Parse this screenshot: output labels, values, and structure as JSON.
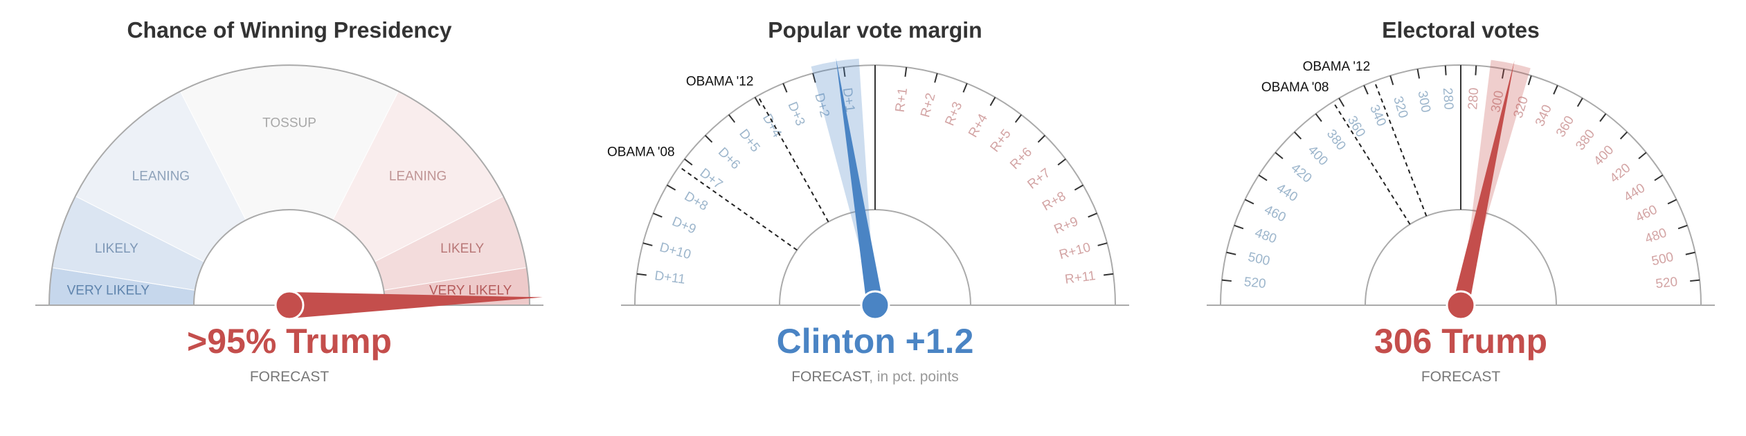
{
  "chart_data": [
    {
      "type": "gauge-zones",
      "title": "Chance of Winning Presidency",
      "xlim": [
        0,
        100
      ],
      "value": 99,
      "color": "#c44e4c",
      "headline": ">95% Trump",
      "caption": "FORECAST",
      "zones": [
        {
          "label": "VERY LIKELY",
          "from": 0,
          "to": 5,
          "color": "#c6d7ec",
          "text_color": "#5f84ad"
        },
        {
          "label": "LIKELY",
          "from": 5,
          "to": 15,
          "color": "#dbe5f2",
          "text_color": "#7d97b6"
        },
        {
          "label": "LEANING",
          "from": 15,
          "to": 35,
          "color": "#edf1f7",
          "text_color": "#8ea2ba"
        },
        {
          "label": "TOSSUP",
          "from": 35,
          "to": 65,
          "color": "#f8f8f8",
          "text_color": "#a8a8a8"
        },
        {
          "label": "LEANING",
          "from": 65,
          "to": 85,
          "color": "#f9eded",
          "text_color": "#bf9494"
        },
        {
          "label": "LIKELY",
          "from": 85,
          "to": 95,
          "color": "#f3dcdc",
          "text_color": "#b87777"
        },
        {
          "label": "VERY LIKELY",
          "from": 95,
          "to": 100,
          "color": "#eecaca",
          "text_color": "#b45a5a"
        }
      ]
    },
    {
      "type": "gauge-ticks",
      "title": "Popular vote margin",
      "xlim": [
        -12,
        12
      ],
      "center": 0,
      "value": -1.2,
      "color": "#4a84c4",
      "range": [
        -2,
        -0.5
      ],
      "headline": "Clinton +1.2",
      "caption": "FORECAST",
      "caption_note": ", in pct. points",
      "xticks": [
        {
          "value": -11,
          "label": "D+11"
        },
        {
          "value": -10,
          "label": "D+10"
        },
        {
          "value": -9,
          "label": "D+9"
        },
        {
          "value": -8,
          "label": "D+8"
        },
        {
          "value": -7,
          "label": "D+7"
        },
        {
          "value": -6,
          "label": "D+6"
        },
        {
          "value": -5,
          "label": "D+5"
        },
        {
          "value": -4,
          "label": "D+4"
        },
        {
          "value": -3,
          "label": "D+3"
        },
        {
          "value": -2,
          "label": "D+2"
        },
        {
          "value": -1,
          "label": "D+1"
        },
        {
          "value": 1,
          "label": "R+1"
        },
        {
          "value": 2,
          "label": "R+2"
        },
        {
          "value": 3,
          "label": "R+3"
        },
        {
          "value": 4,
          "label": "R+4"
        },
        {
          "value": 5,
          "label": "R+5"
        },
        {
          "value": 6,
          "label": "R+6"
        },
        {
          "value": 7,
          "label": "R+7"
        },
        {
          "value": 8,
          "label": "R+8"
        },
        {
          "value": 9,
          "label": "R+9"
        },
        {
          "value": 10,
          "label": "R+10"
        },
        {
          "value": 11,
          "label": "R+11"
        }
      ],
      "markers": [
        {
          "label": "OBAMA '12",
          "value": -3.9
        },
        {
          "label": "OBAMA '08",
          "value": -7.3
        }
      ]
    },
    {
      "type": "gauge-ticks",
      "title": "Electoral votes",
      "xlim": [
        0,
        538
      ],
      "center": 269,
      "value": 306,
      "color": "#c44e4c",
      "range": [
        290,
        318
      ],
      "headline": "306 Trump",
      "caption": "FORECAST",
      "xticks": [
        {
          "value": 18,
          "label": "520"
        },
        {
          "value": 38,
          "label": "500"
        },
        {
          "value": 58,
          "label": "480"
        },
        {
          "value": 78,
          "label": "460"
        },
        {
          "value": 98,
          "label": "440"
        },
        {
          "value": 118,
          "label": "420"
        },
        {
          "value": 138,
          "label": "400"
        },
        {
          "value": 158,
          "label": "380"
        },
        {
          "value": 178,
          "label": "360"
        },
        {
          "value": 198,
          "label": "340"
        },
        {
          "value": 218,
          "label": "320"
        },
        {
          "value": 238,
          "label": "300"
        },
        {
          "value": 258,
          "label": "280"
        },
        280,
        300,
        320,
        340,
        360,
        380,
        400,
        420,
        440,
        460,
        480,
        500,
        520
      ],
      "markers": [
        {
          "label": "OBAMA '12",
          "value": 206
        },
        {
          "label": "OBAMA '08",
          "value": 173
        }
      ]
    }
  ]
}
